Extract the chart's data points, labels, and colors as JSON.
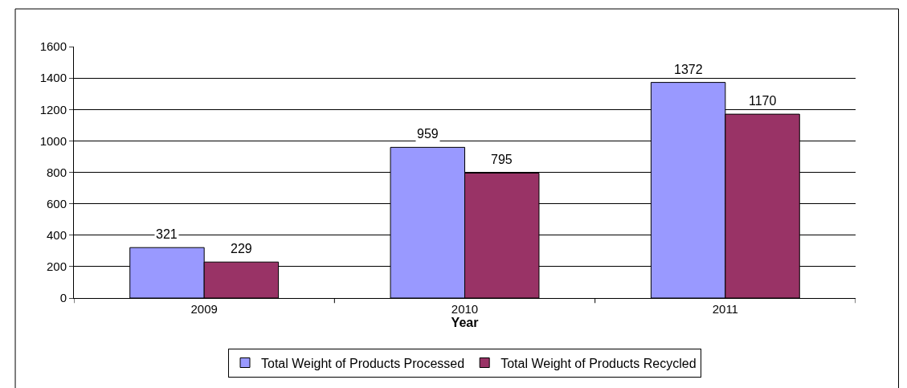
{
  "chart_data": {
    "type": "bar",
    "xlabel": "Year",
    "categories": [
      "2009",
      "2010",
      "2011"
    ],
    "series": [
      {
        "name": "Total Weight of Products Processed",
        "color": "#9999ff",
        "values": [
          321,
          959,
          1372
        ]
      },
      {
        "name": "Total Weight of Products Recycled",
        "color": "#993366",
        "values": [
          229,
          795,
          1170
        ]
      }
    ],
    "ylim": [
      0,
      1600
    ],
    "yticks": [
      0,
      200,
      400,
      600,
      800,
      1000,
      1200,
      1400,
      1600
    ],
    "grid": "y",
    "legend": "bottom",
    "data_labels": true
  }
}
